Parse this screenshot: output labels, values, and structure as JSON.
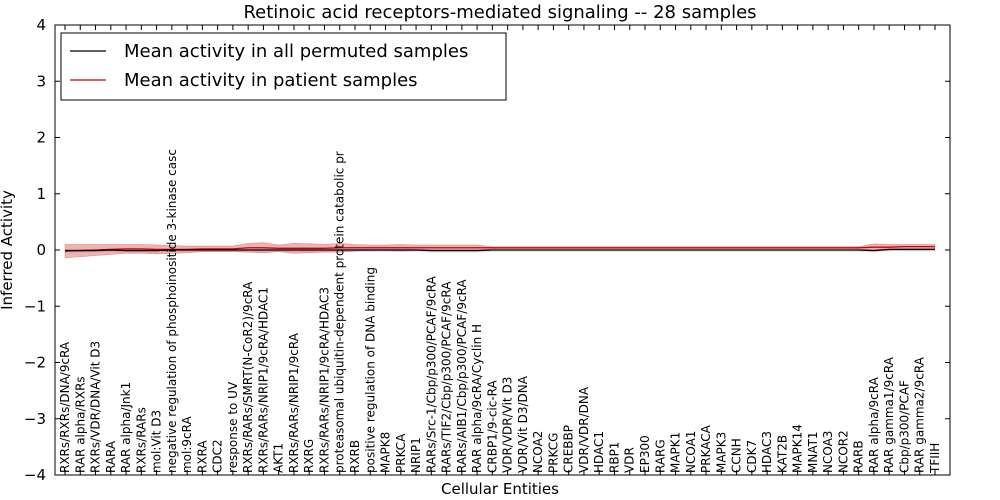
{
  "chart_data": {
    "type": "line",
    "title": "Retinoic acid receptors-mediated signaling -- 28 samples",
    "xlabel": "Cellular Entities",
    "ylabel": "Inferred Activity",
    "ylim": [
      -4,
      4
    ],
    "yticks": [
      "−4",
      "−3",
      "−2",
      "−1",
      "0",
      "1",
      "2",
      "3",
      "4"
    ],
    "legend_position": "top-left",
    "categories": [
      "RXRs/RXRs/DNA/9cRA",
      "RAR alpha/RXRs",
      "RXRs/VDR/DNA/Vit D3",
      "RARA",
      "RAR alpha/Jnk1",
      "RXRs/RARs",
      "mol:Vit D3",
      "negative regulation of phosphoinositide 3-kinase casc",
      "mol:9cRA",
      "RXRA",
      "CDC2",
      "response to UV",
      "RXRs/RARs/SMRT(N-CoR2)/9cRA",
      "RXRs/RARs/NRIP1/9cRA/HDAC1",
      "AKT1",
      "RXRs/RARs/NRIP1/9cRA",
      "RXRG",
      "RXRs/RARs/NRIP1/9cRA/HDAC3",
      "proteasomal ubiquitin-dependent protein catabolic pr",
      "RXRB",
      "positive regulation of DNA binding",
      "MAPK8",
      "PRKCA",
      "NRIP1",
      "RARs/Src-1/Cbp/p300/PCAF/9cRA",
      "RARs/TIF2/Cbp/p300/PCAF/9cRA",
      "RARs/AIB1/Cbp/p300/PCAF/9cRA",
      "RAR alpha/9cRA/Cyclin H",
      "CRBP1/9-cic-RA",
      "VDR/VDR/Vit D3",
      "VDR/Vit D3/DNA",
      "NCOA2",
      "PRKCG",
      "CREBBP",
      "VDR/VDR/DNA",
      "HDAC1",
      "RBP1",
      "VDR",
      "EP300",
      "RARG",
      "MAPK1",
      "NCOA1",
      "PRKACA",
      "MAPK3",
      "CCNH",
      "CDK7",
      "HDAC3",
      "KAT2B",
      "MAPK14",
      "MNAT1",
      "NCOA3",
      "NCOR2",
      "RARB",
      "RAR alpha/9cRA",
      "RAR gamma1/9cRA",
      "Cbp/p300/PCAF",
      "RAR gamma2/9cRA",
      "TFIIH"
    ],
    "series": [
      {
        "name": "Mean activity in all permuted samples",
        "color": "#000000",
        "values": [
          -0.01,
          -0.01,
          -0.01,
          0,
          -0.01,
          -0.01,
          -0.01,
          0,
          0,
          0,
          0,
          0,
          0,
          0,
          0,
          0,
          0,
          0,
          0,
          0,
          0,
          0,
          0,
          0,
          -0.01,
          -0.01,
          -0.01,
          -0.01,
          0,
          0,
          0,
          0,
          0,
          0,
          0,
          0,
          0,
          0,
          0,
          0,
          0,
          0,
          0,
          0,
          0,
          0,
          0,
          0,
          0,
          0,
          0,
          0,
          0,
          -0.01,
          0.01,
          0.01,
          0.01,
          0.01
        ]
      },
      {
        "name": "Mean activity in patient samples",
        "color": "#cc0000",
        "values": [
          -0.02,
          -0.01,
          0,
          0.01,
          0.02,
          0.02,
          0.01,
          0.01,
          0.01,
          0.02,
          0.02,
          0.02,
          0.04,
          0.04,
          0.03,
          0.03,
          0.03,
          0.03,
          0.04,
          0.04,
          0.04,
          0.04,
          0.04,
          0.04,
          0.04,
          0.04,
          0.04,
          0.04,
          0.04,
          0.04,
          0.04,
          0.04,
          0.04,
          0.04,
          0.04,
          0.04,
          0.04,
          0.04,
          0.04,
          0.04,
          0.04,
          0.04,
          0.04,
          0.04,
          0.04,
          0.04,
          0.04,
          0.04,
          0.04,
          0.04,
          0.04,
          0.04,
          0.04,
          0.05,
          0.05,
          0.06,
          0.06,
          0.06
        ],
        "band_halfwidth": [
          0.12,
          0.11,
          0.1,
          0.09,
          0.08,
          0.08,
          0.08,
          0.07,
          0.06,
          0.05,
          0.05,
          0.05,
          0.08,
          0.09,
          0.06,
          0.09,
          0.08,
          0.07,
          0.08,
          0.06,
          0.05,
          0.05,
          0.06,
          0.05,
          0.05,
          0.05,
          0.05,
          0.05,
          0.02,
          0.02,
          0.02,
          0.02,
          0.02,
          0.02,
          0.02,
          0.02,
          0.02,
          0.02,
          0.02,
          0.02,
          0.02,
          0.02,
          0.02,
          0.02,
          0.02,
          0.02,
          0.02,
          0.02,
          0.02,
          0.02,
          0.02,
          0.02,
          0.02,
          0.06,
          0.05,
          0.04,
          0.04,
          0.04
        ]
      }
    ]
  }
}
